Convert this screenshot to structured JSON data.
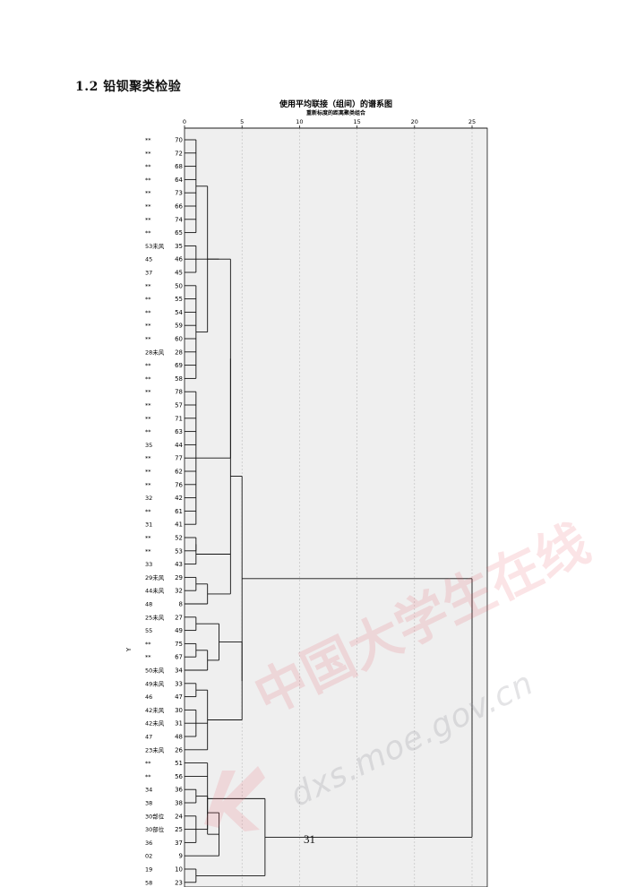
{
  "heading": "1.2 铅钡聚类检验",
  "page_number": "31",
  "watermark": {
    "brand": "中国大学生在线",
    "url": "dxs.moe.gov.cn"
  },
  "colors": {
    "plot_bg": "#efefef",
    "line": "#111111",
    "grid": "#bbbbbb",
    "watermark": "#e86a72"
  },
  "chart_data": {
    "type": "dendrogram",
    "title": "使用平均联接（组间）的谱系图",
    "subtitle": "重新标度的距离聚类组合",
    "ylabel": "Y",
    "xlim": [
      0,
      25
    ],
    "xticks": [
      0,
      5,
      10,
      15,
      20,
      25
    ],
    "grid": true,
    "leaves": [
      {
        "label": "**",
        "id": "70"
      },
      {
        "label": "**",
        "id": "72"
      },
      {
        "label": "**",
        "id": "68"
      },
      {
        "label": "**",
        "id": "64"
      },
      {
        "label": "**",
        "id": "73"
      },
      {
        "label": "**",
        "id": "66"
      },
      {
        "label": "**",
        "id": "74"
      },
      {
        "label": "**",
        "id": "65"
      },
      {
        "label": "53未风",
        "id": "35"
      },
      {
        "label": "45",
        "id": "46"
      },
      {
        "label": "37",
        "id": "45"
      },
      {
        "label": "**",
        "id": "50"
      },
      {
        "label": "**",
        "id": "55"
      },
      {
        "label": "**",
        "id": "54"
      },
      {
        "label": "**",
        "id": "59"
      },
      {
        "label": "**",
        "id": "60"
      },
      {
        "label": "28未风",
        "id": "28"
      },
      {
        "label": "**",
        "id": "69"
      },
      {
        "label": "**",
        "id": "58"
      },
      {
        "label": "**",
        "id": "78"
      },
      {
        "label": "**",
        "id": "57"
      },
      {
        "label": "**",
        "id": "71"
      },
      {
        "label": "**",
        "id": "63"
      },
      {
        "label": "35",
        "id": "44"
      },
      {
        "label": "**",
        "id": "77"
      },
      {
        "label": "**",
        "id": "62"
      },
      {
        "label": "**",
        "id": "76"
      },
      {
        "label": "32",
        "id": "42"
      },
      {
        "label": "**",
        "id": "61"
      },
      {
        "label": "31",
        "id": "41"
      },
      {
        "label": "**",
        "id": "52"
      },
      {
        "label": "**",
        "id": "53"
      },
      {
        "label": "33",
        "id": "43"
      },
      {
        "label": "29未风",
        "id": "29"
      },
      {
        "label": "44未风",
        "id": "32"
      },
      {
        "label": "48",
        "id": "8"
      },
      {
        "label": "25未风",
        "id": "27"
      },
      {
        "label": "55",
        "id": "49"
      },
      {
        "label": "**",
        "id": "75"
      },
      {
        "label": "**",
        "id": "67"
      },
      {
        "label": "50未风",
        "id": "34"
      },
      {
        "label": "49未风",
        "id": "33"
      },
      {
        "label": "46",
        "id": "47"
      },
      {
        "label": "42未风",
        "id": "30"
      },
      {
        "label": "42未风",
        "id": "31"
      },
      {
        "label": "47",
        "id": "48"
      },
      {
        "label": "23未风",
        "id": "26"
      },
      {
        "label": "**",
        "id": "51"
      },
      {
        "label": "**",
        "id": "56"
      },
      {
        "label": "34",
        "id": "36"
      },
      {
        "label": "38",
        "id": "38"
      },
      {
        "label": "30部位",
        "id": "24"
      },
      {
        "label": "30部位",
        "id": "25"
      },
      {
        "label": "36",
        "id": "37"
      },
      {
        "label": "02",
        "id": "9"
      },
      {
        "label": "19",
        "id": "10"
      },
      {
        "label": "58",
        "id": "23"
      }
    ],
    "merges": [
      {
        "id": "m1",
        "children": [
          0,
          1,
          2,
          3,
          4,
          5,
          6,
          7
        ],
        "distance": 1.0
      },
      {
        "id": "m2",
        "children": [
          8,
          9,
          10
        ],
        "distance": 1.0
      },
      {
        "id": "m3",
        "children": [
          11,
          12,
          13,
          14,
          15,
          16,
          17,
          18
        ],
        "distance": 1.0
      },
      {
        "id": "m4",
        "children": [
          19,
          20,
          21,
          22,
          23,
          24,
          25,
          26,
          27,
          28,
          29
        ],
        "distance": 1.0
      },
      {
        "id": "m5",
        "children": [
          30,
          31
        ],
        "distance": 1.0
      },
      {
        "id": "m6",
        "children": [
          "m5",
          32
        ],
        "distance": 1.0
      },
      {
        "id": "m7",
        "children": [
          "m1",
          "m3"
        ],
        "distance": 2.0
      },
      {
        "id": "m8",
        "children": [
          "m7",
          "m2"
        ],
        "distance": 3.0
      },
      {
        "id": "m9",
        "children": [
          "m8",
          "m4"
        ],
        "distance": 4.0
      },
      {
        "id": "m10",
        "children": [
          33,
          34
        ],
        "distance": 1.0
      },
      {
        "id": "m11",
        "children": [
          "m10",
          35
        ],
        "distance": 2.0
      },
      {
        "id": "m12",
        "children": [
          "m9",
          "m6",
          "m11"
        ],
        "distance": 4.0
      },
      {
        "id": "m13",
        "children": [
          36,
          37
        ],
        "distance": 1.0
      },
      {
        "id": "m14",
        "children": [
          38,
          39
        ],
        "distance": 1.0
      },
      {
        "id": "m15",
        "children": [
          "m14",
          40
        ],
        "distance": 2.0
      },
      {
        "id": "m16",
        "children": [
          "m13",
          "m15"
        ],
        "distance": 3.0
      },
      {
        "id": "m17",
        "children": [
          41,
          42
        ],
        "distance": 1.0
      },
      {
        "id": "m18",
        "children": [
          43,
          44,
          45
        ],
        "distance": 1.0
      },
      {
        "id": "m19",
        "children": [
          "m17",
          "m18",
          46
        ],
        "distance": 2.0
      },
      {
        "id": "m20",
        "children": [
          "m16",
          "m19"
        ],
        "distance": 5.0
      },
      {
        "id": "m21",
        "children": [
          "m12",
          "m20"
        ],
        "distance": 5.0
      },
      {
        "id": "m22",
        "children": [
          49,
          50
        ],
        "distance": 1.0
      },
      {
        "id": "m23",
        "children": [
          51,
          52,
          53
        ],
        "distance": 1.0
      },
      {
        "id": "m24",
        "children": [
          "m22",
          "m23"
        ],
        "distance": 2.0
      },
      {
        "id": "m25",
        "children": [
          "m24",
          54
        ],
        "distance": 3.0
      },
      {
        "id": "m26",
        "children": [
          "m25",
          47,
          48
        ],
        "distance": 2.0
      },
      {
        "id": "m27",
        "children": [
          55,
          56
        ],
        "distance": 1.0
      },
      {
        "id": "m28",
        "children": [
          "m26",
          "m27"
        ],
        "distance": 7.0
      },
      {
        "id": "m29",
        "children": [
          "m21",
          "m28"
        ],
        "distance": 25.0
      }
    ]
  }
}
